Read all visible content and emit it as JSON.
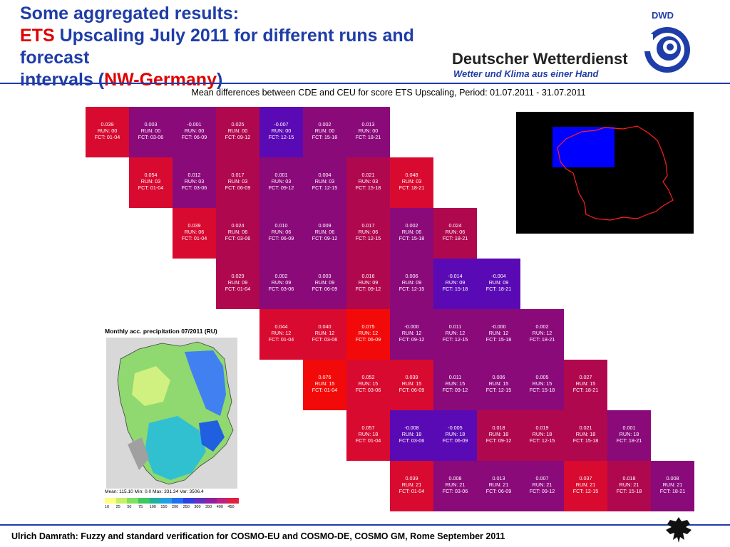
{
  "header": {
    "line1": "Some aggregated results:",
    "line2_red": "ETS",
    "line2_rest": " Upscaling July 2011 for different runs and forecast",
    "line3_start": "intervals (",
    "line3_red": "NW-Germany",
    "line3_end": ")"
  },
  "logo": {
    "abbr": "DWD",
    "name": "Deutscher Wetterdienst",
    "slogan": "Wetter und Klima aus einer Hand",
    "icon": "dwd-spiral-logo"
  },
  "matrix_title": "Mean differences between CDE and CEU for score ETS Upscaling, Period: 01.07.2011 - 31.07.2011",
  "colors": {
    "title_blue": "#1f3da8",
    "title_red": "#e00000",
    "cell_scale": [
      "#5a0ab4",
      "#8a0a7a",
      "#b0084e",
      "#d80a30",
      "#f20a0a"
    ]
  },
  "matrix": {
    "rows": [
      {
        "run": "00",
        "cells": [
          {
            "value": "0.039",
            "fct": "01-04"
          },
          {
            "value": "0.003",
            "fct": "03-06"
          },
          {
            "value": "-0.001",
            "fct": "06-09"
          },
          {
            "value": "0.025",
            "fct": "09-12"
          },
          {
            "value": "-0.007",
            "fct": "12-15"
          },
          {
            "value": "0.002",
            "fct": "15-18"
          },
          {
            "value": "0.013",
            "fct": "18-21"
          }
        ]
      },
      {
        "run": "03",
        "cells": [
          {
            "value": "0.054",
            "fct": "01-04"
          },
          {
            "value": "0.012",
            "fct": "03-06"
          },
          {
            "value": "0.017",
            "fct": "06-09"
          },
          {
            "value": "0.001",
            "fct": "09-12"
          },
          {
            "value": "0.004",
            "fct": "12-15"
          },
          {
            "value": "0.021",
            "fct": "15-18"
          },
          {
            "value": "0.048",
            "fct": "18-21"
          }
        ]
      },
      {
        "run": "06",
        "cells": [
          {
            "value": "0.039",
            "fct": "01-04"
          },
          {
            "value": "0.024",
            "fct": "03-06"
          },
          {
            "value": "0.010",
            "fct": "06-09"
          },
          {
            "value": "0.009",
            "fct": "09-12"
          },
          {
            "value": "0.017",
            "fct": "12-15"
          },
          {
            "value": "0.002",
            "fct": "15-18"
          },
          {
            "value": "0.024",
            "fct": "18-21"
          }
        ]
      },
      {
        "run": "09",
        "cells": [
          {
            "value": "0.029",
            "fct": "01-04"
          },
          {
            "value": "0.002",
            "fct": "03-06"
          },
          {
            "value": "0.003",
            "fct": "06-09"
          },
          {
            "value": "0.016",
            "fct": "09-12"
          },
          {
            "value": "0.006",
            "fct": "12-15"
          },
          {
            "value": "-0.014",
            "fct": "15-18"
          },
          {
            "value": "-0.004",
            "fct": "18-21"
          }
        ]
      },
      {
        "run": "12",
        "cells": [
          {
            "value": "0.044",
            "fct": "01-04"
          },
          {
            "value": "0.040",
            "fct": "03-06"
          },
          {
            "value": "0.075",
            "fct": "06-09"
          },
          {
            "value": "-0.000",
            "fct": "09-12"
          },
          {
            "value": "0.011",
            "fct": "12-15"
          },
          {
            "value": "-0.000",
            "fct": "15-18"
          },
          {
            "value": "0.002",
            "fct": "18-21"
          }
        ]
      },
      {
        "run": "15",
        "cells": [
          {
            "value": "0.076",
            "fct": "01-04"
          },
          {
            "value": "0.052",
            "fct": "03-06"
          },
          {
            "value": "0.039",
            "fct": "06-09"
          },
          {
            "value": "0.011",
            "fct": "09-12"
          },
          {
            "value": "0.006",
            "fct": "12-15"
          },
          {
            "value": "0.005",
            "fct": "15-18"
          },
          {
            "value": "0.027",
            "fct": "18-21"
          }
        ]
      },
      {
        "run": "18",
        "cells": [
          {
            "value": "0.057",
            "fct": "01-04"
          },
          {
            "value": "-0.008",
            "fct": "03-06"
          },
          {
            "value": "-0.005",
            "fct": "06-09"
          },
          {
            "value": "0.018",
            "fct": "09-12"
          },
          {
            "value": "0.019",
            "fct": "12-15"
          },
          {
            "value": "0.021",
            "fct": "15-18"
          },
          {
            "value": "0.001",
            "fct": "18-21"
          }
        ]
      },
      {
        "run": "21",
        "cells": [
          {
            "value": "0.039",
            "fct": "01-04"
          },
          {
            "value": "0.008",
            "fct": "03-06"
          },
          {
            "value": "0.013",
            "fct": "06-09"
          },
          {
            "value": "0.007",
            "fct": "09-12"
          },
          {
            "value": "0.037",
            "fct": "12-15"
          },
          {
            "value": "0.018",
            "fct": "15-18"
          },
          {
            "value": "0.008",
            "fct": "18-21"
          }
        ]
      }
    ],
    "run_prefix": "RUN: ",
    "fct_prefix": "FCT: "
  },
  "precip_map": {
    "title": "Monthly acc. precipitation 07/2011 (RU)",
    "stats": "Mean: 115.10 Min: 0.0        Max: 331.34   Var: 3506.4",
    "scale_labels": [
      "10",
      "25",
      "50",
      "75",
      "100",
      "150",
      "200",
      "250",
      "300",
      "350",
      "400",
      "450"
    ],
    "scale_colors": [
      "#ffff80",
      "#c8f064",
      "#80e060",
      "#40c860",
      "#20b0a0",
      "#20a0e0",
      "#2070f0",
      "#3040e0",
      "#6030c0",
      "#9020a0",
      "#c02080",
      "#e02040"
    ]
  },
  "footer": "Ulrich Damrath: Fuzzy and standard verification for COSMO-EU and COSMO-DE, COSMO GM, Rome September 2011"
}
